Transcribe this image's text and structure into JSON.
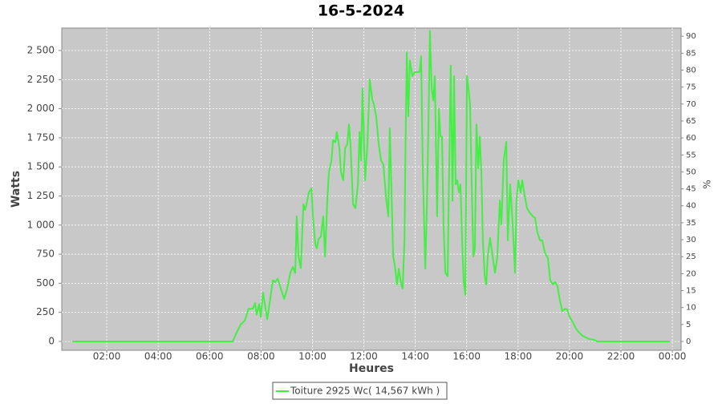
{
  "chart_data": {
    "type": "line",
    "title": "16-5-2024",
    "x_label": "Heures",
    "y_label": "Watts",
    "y2_label": "%",
    "x": [
      0.66,
      6.9,
      7.05,
      7.21,
      7.37,
      7.52,
      7.68,
      7.77,
      7.83,
      7.93,
      7.99,
      8.08,
      8.15,
      8.24,
      8.33,
      8.46,
      8.55,
      8.65,
      8.77,
      8.9,
      9.02,
      9.14,
      9.24,
      9.33,
      9.39,
      9.46,
      9.55,
      9.65,
      9.71,
      9.77,
      9.86,
      9.96,
      10.02,
      10.11,
      10.17,
      10.24,
      10.33,
      10.42,
      10.49,
      10.58,
      10.64,
      10.74,
      10.8,
      10.89,
      10.95,
      11.05,
      11.11,
      11.2,
      11.27,
      11.36,
      11.42,
      11.48,
      11.58,
      11.67,
      11.77,
      11.83,
      11.89,
      11.95,
      12.05,
      12.14,
      12.23,
      12.33,
      12.39,
      12.48,
      12.58,
      12.67,
      12.76,
      12.86,
      12.95,
      13.01,
      13.08,
      13.14,
      13.2,
      13.29,
      13.36,
      13.45,
      13.51,
      13.58,
      13.61,
      13.67,
      13.73,
      13.79,
      13.89,
      13.98,
      14.07,
      14.17,
      14.23,
      14.29,
      14.39,
      14.45,
      14.51,
      14.57,
      14.64,
      14.7,
      14.76,
      14.85,
      14.92,
      14.98,
      15.04,
      15.1,
      15.17,
      15.26,
      15.32,
      15.38,
      15.45,
      15.51,
      15.57,
      15.63,
      15.7,
      15.76,
      15.82,
      15.88,
      15.95,
      16.01,
      16.07,
      16.13,
      16.2,
      16.26,
      16.32,
      16.38,
      16.45,
      16.51,
      16.57,
      16.63,
      16.7,
      16.76,
      16.82,
      16.91,
      17.01,
      17.1,
      17.19,
      17.29,
      17.35,
      17.44,
      17.54,
      17.6,
      17.69,
      17.79,
      17.88,
      17.94,
      18.01,
      18.1,
      18.16,
      18.26,
      18.35,
      18.44,
      18.57,
      18.66,
      18.75,
      18.85,
      18.94,
      19.04,
      19.16,
      19.25,
      19.35,
      19.44,
      19.53,
      19.63,
      19.72,
      19.82,
      19.91,
      20.0,
      20.13,
      20.25,
      20.38,
      20.5,
      20.63,
      20.78,
      20.94,
      21.09,
      23.9
    ],
    "series": [
      {
        "name": "Toiture 2925 Wc( 14,567 kWh )",
        "color": "#44ee44",
        "values": [
          0,
          0,
          75,
          145,
          180,
          280,
          280,
          330,
          230,
          320,
          210,
          420,
          320,
          190,
          320,
          525,
          510,
          540,
          455,
          365,
          455,
          590,
          640,
          590,
          1075,
          730,
          630,
          1180,
          1130,
          1180,
          1280,
          1315,
          1075,
          835,
          800,
          880,
          900,
          1075,
          730,
          1215,
          1455,
          1555,
          1730,
          1710,
          1800,
          1660,
          1455,
          1385,
          1660,
          1695,
          1865,
          1695,
          1180,
          1145,
          1350,
          1800,
          1555,
          2175,
          1385,
          1695,
          2250,
          2075,
          2040,
          1935,
          1695,
          1555,
          1520,
          1245,
          1075,
          1830,
          1245,
          730,
          660,
          490,
          625,
          490,
          455,
          870,
          1455,
          2485,
          1935,
          2415,
          2280,
          2315,
          2315,
          2315,
          2450,
          1520,
          625,
          1140,
          1830,
          2670,
          2175,
          2070,
          2280,
          1075,
          2000,
          1760,
          1760,
          1005,
          590,
          560,
          1490,
          2370,
          1210,
          2280,
          1350,
          1385,
          1280,
          1350,
          870,
          525,
          400,
          2280,
          2175,
          2040,
          1315,
          730,
          800,
          1865,
          1490,
          1760,
          1455,
          870,
          560,
          490,
          730,
          890,
          730,
          590,
          730,
          1210,
          1005,
          1555,
          1715,
          870,
          1350,
          1005,
          590,
          1210,
          1385,
          1280,
          1385,
          1245,
          1145,
          1110,
          1075,
          1060,
          935,
          870,
          870,
          765,
          715,
          525,
          490,
          510,
          475,
          350,
          260,
          280,
          275,
          215,
          165,
          110,
          75,
          50,
          35,
          20,
          15,
          0,
          0
        ]
      }
    ],
    "xlim": [
      0.25,
      24.34
    ],
    "xticks": [
      {
        "value": 2,
        "label": "02:00"
      },
      {
        "value": 4,
        "label": "04:00"
      },
      {
        "value": 6,
        "label": "06:00"
      },
      {
        "value": 8,
        "label": "08:00"
      },
      {
        "value": 10,
        "label": "10:00"
      },
      {
        "value": 12,
        "label": "12:00"
      },
      {
        "value": 14,
        "label": "14:00"
      },
      {
        "value": 16,
        "label": "16:00"
      },
      {
        "value": 18,
        "label": "18:00"
      },
      {
        "value": 20,
        "label": "20:00"
      },
      {
        "value": 22,
        "label": "22:00"
      },
      {
        "value": 24,
        "label": "00:00"
      }
    ],
    "ylim": [
      -76,
      2693
    ],
    "yticks": [
      0,
      250,
      500,
      750,
      {
        "value": 1000,
        "label": "1 000"
      },
      {
        "value": 1250,
        "label": "1 250"
      },
      {
        "value": 1500,
        "label": "1 500"
      },
      {
        "value": 1750,
        "label": "1 750"
      },
      {
        "value": 2000,
        "label": "2 000"
      },
      {
        "value": 2250,
        "label": "2 250"
      },
      {
        "value": 2500,
        "label": "2 500"
      }
    ],
    "y2lim": [
      -2.6,
      92.4
    ],
    "y2ticks": [
      0,
      5,
      10,
      15,
      20,
      25,
      30,
      35,
      40,
      45,
      50,
      55,
      60,
      65,
      70,
      75,
      80,
      85,
      90
    ],
    "grid": true
  }
}
